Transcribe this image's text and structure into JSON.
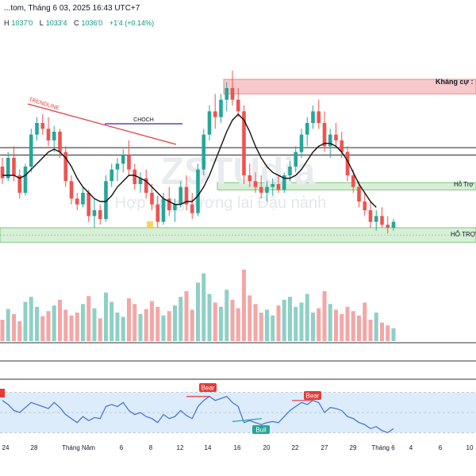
{
  "header": {
    "title_line": "...tom, Tháng 6 03, 2025 16:43 UTC+7",
    "ohlc": [
      {
        "label": "H",
        "value": "1037'0"
      },
      {
        "label": "L",
        "value": "1033'4"
      },
      {
        "label": "C",
        "value": "1036'0"
      },
      {
        "label": "",
        "value": "+1'4 (+0.14%)"
      }
    ]
  },
  "annotations": {
    "trendline": "TRENDLINE",
    "choch": "CHOCH",
    "khang_cu": "Kháng cự :",
    "ho_tro_1": "Hỗ Trợ",
    "ho_tro_2": "HỖ TRỢ",
    "watermark_top": "ZSTUdia",
    "watermark_bottom": "Hợp đồng tương lai Đậu nành",
    "rsi_bull": "Bull",
    "rsi_bear_1": "Bear",
    "rsi_bear_2": "Bear"
  },
  "colors": {
    "up": "#26a69a",
    "down": "#ef5350",
    "vol_up": "#8ed0c6",
    "vol_down": "#f4a6a6",
    "resistance_fill": "#f7c9cc",
    "support_fill": "#d6efd6",
    "trendline": "#e33b3b",
    "choch": "#5b3fd6",
    "ma": "#111111",
    "rsi_line": "#3b6fd9",
    "rsi_band": "#dcecfb"
  },
  "chart_data": {
    "type": "candlestick",
    "x_tick_labels": [
      "24",
      "28",
      "Tháng Năm",
      "6",
      "8",
      "12",
      "14",
      "16",
      "20",
      "22",
      "27",
      "29",
      "Tháng 6",
      "4",
      "6",
      "10"
    ],
    "candles": [
      [
        1055,
        1058,
        1049,
        1051
      ],
      [
        1051,
        1060,
        1050,
        1058
      ],
      [
        1058,
        1062,
        1050,
        1052
      ],
      [
        1052,
        1054,
        1044,
        1046
      ],
      [
        1046,
        1056,
        1045,
        1055
      ],
      [
        1055,
        1068,
        1053,
        1066
      ],
      [
        1066,
        1072,
        1064,
        1070
      ],
      [
        1070,
        1073,
        1066,
        1068
      ],
      [
        1068,
        1072,
        1062,
        1064
      ],
      [
        1064,
        1069,
        1060,
        1067
      ],
      [
        1067,
        1068,
        1058,
        1060
      ],
      [
        1060,
        1062,
        1048,
        1050
      ],
      [
        1050,
        1052,
        1042,
        1044
      ],
      [
        1044,
        1046,
        1040,
        1042
      ],
      [
        1042,
        1048,
        1041,
        1046
      ],
      [
        1046,
        1047,
        1036,
        1038
      ],
      [
        1038,
        1044,
        1034,
        1040
      ],
      [
        1040,
        1042,
        1035,
        1037
      ],
      [
        1037,
        1052,
        1036,
        1050
      ],
      [
        1050,
        1056,
        1048,
        1054
      ],
      [
        1054,
        1058,
        1050,
        1056
      ],
      [
        1056,
        1061,
        1053,
        1059
      ],
      [
        1059,
        1064,
        1052,
        1054
      ],
      [
        1054,
        1056,
        1047,
        1049
      ],
      [
        1049,
        1053,
        1046,
        1051
      ],
      [
        1051,
        1054,
        1044,
        1046
      ],
      [
        1046,
        1049,
        1040,
        1042
      ],
      [
        1042,
        1045,
        1034,
        1036
      ],
      [
        1036,
        1046,
        1035,
        1044
      ],
      [
        1044,
        1048,
        1038,
        1040
      ],
      [
        1040,
        1044,
        1036,
        1042
      ],
      [
        1042,
        1050,
        1041,
        1048
      ],
      [
        1048,
        1052,
        1040,
        1042
      ],
      [
        1042,
        1046,
        1037,
        1039
      ],
      [
        1039,
        1056,
        1038,
        1054
      ],
      [
        1054,
        1068,
        1052,
        1066
      ],
      [
        1066,
        1076,
        1064,
        1074
      ],
      [
        1074,
        1080,
        1068,
        1072
      ],
      [
        1072,
        1080,
        1070,
        1078
      ],
      [
        1078,
        1084,
        1074,
        1082
      ],
      [
        1082,
        1088,
        1076,
        1078
      ],
      [
        1078,
        1082,
        1072,
        1074
      ],
      [
        1074,
        1076,
        1049,
        1052
      ],
      [
        1052,
        1056,
        1048,
        1050
      ],
      [
        1050,
        1053,
        1046,
        1048
      ],
      [
        1048,
        1052,
        1044,
        1046
      ],
      [
        1046,
        1050,
        1043,
        1048
      ],
      [
        1048,
        1051,
        1045,
        1049
      ],
      [
        1049,
        1052,
        1046,
        1047
      ],
      [
        1047,
        1053,
        1046,
        1052
      ],
      [
        1052,
        1057,
        1050,
        1055
      ],
      [
        1055,
        1062,
        1053,
        1060
      ],
      [
        1060,
        1068,
        1058,
        1066
      ],
      [
        1066,
        1072,
        1062,
        1070
      ],
      [
        1070,
        1076,
        1068,
        1074
      ],
      [
        1074,
        1078,
        1068,
        1070
      ],
      [
        1070,
        1074,
        1060,
        1062
      ],
      [
        1062,
        1068,
        1058,
        1066
      ],
      [
        1066,
        1070,
        1062,
        1064
      ],
      [
        1064,
        1067,
        1058,
        1060
      ],
      [
        1060,
        1062,
        1050,
        1052
      ],
      [
        1052,
        1054,
        1046,
        1048
      ],
      [
        1048,
        1050,
        1041,
        1043
      ],
      [
        1043,
        1046,
        1038,
        1040
      ],
      [
        1040,
        1043,
        1034,
        1036
      ],
      [
        1036,
        1040,
        1033,
        1038
      ],
      [
        1038,
        1041,
        1034,
        1035
      ],
      [
        1035,
        1038,
        1032,
        1034
      ],
      [
        1034,
        1037,
        1033,
        1036
      ]
    ],
    "volume_relative": [
      0.3,
      0.45,
      0.38,
      0.28,
      0.55,
      0.62,
      0.48,
      0.35,
      0.42,
      0.5,
      0.58,
      0.44,
      0.36,
      0.4,
      0.52,
      0.63,
      0.46,
      0.32,
      0.68,
      0.55,
      0.4,
      0.34,
      0.6,
      0.52,
      0.38,
      0.45,
      0.56,
      0.48,
      0.36,
      0.42,
      0.5,
      0.62,
      0.7,
      0.44,
      0.82,
      0.95,
      0.66,
      0.54,
      0.48,
      0.72,
      0.58,
      0.46,
      1.0,
      0.64,
      0.52,
      0.4,
      0.44,
      0.36,
      0.5,
      0.58,
      0.62,
      0.48,
      0.54,
      0.66,
      0.4,
      0.46,
      0.7,
      0.52,
      0.44,
      0.38,
      0.48,
      0.42,
      0.36,
      0.54,
      0.3,
      0.4,
      0.26,
      0.22,
      0.18
    ],
    "moving_average": [
      1052,
      1052,
      1052,
      1051,
      1052,
      1054,
      1056,
      1058,
      1060,
      1061,
      1060,
      1058,
      1055,
      1051,
      1048,
      1046,
      1044,
      1043,
      1043,
      1045,
      1048,
      1050,
      1052,
      1052,
      1051,
      1050,
      1048,
      1046,
      1044,
      1043,
      1042,
      1042,
      1043,
      1043,
      1045,
      1048,
      1052,
      1057,
      1062,
      1067,
      1071,
      1073,
      1071,
      1067,
      1062,
      1058,
      1055,
      1053,
      1052,
      1051,
      1051,
      1052,
      1054,
      1057,
      1060,
      1062,
      1063,
      1063,
      1062,
      1060,
      1057,
      1053,
      1049,
      1046,
      1043,
      1041
    ],
    "rsi": [
      62,
      58,
      52,
      50,
      55,
      60,
      58,
      56,
      54,
      60,
      55,
      48,
      44,
      40,
      46,
      42,
      45,
      44,
      56,
      58,
      56,
      60,
      52,
      48,
      50,
      46,
      44,
      40,
      48,
      44,
      46,
      52,
      47,
      44,
      56,
      62,
      66,
      62,
      64,
      66,
      60,
      56,
      40,
      42,
      40,
      38,
      40,
      41,
      40,
      46,
      52,
      56,
      60,
      58,
      62,
      60,
      50,
      55,
      54,
      52,
      46,
      44,
      40,
      38,
      34,
      36,
      32,
      30,
      34
    ],
    "levels": {
      "resistance_zone": [
        1080,
        1085
      ],
      "support_zone_1": [
        1047,
        1049.5
      ],
      "support_zone_2": [
        1029,
        1034
      ],
      "horizontal_lines": [
        1061.5,
        1059
      ]
    },
    "price_range": [
      1025,
      1100
    ]
  }
}
